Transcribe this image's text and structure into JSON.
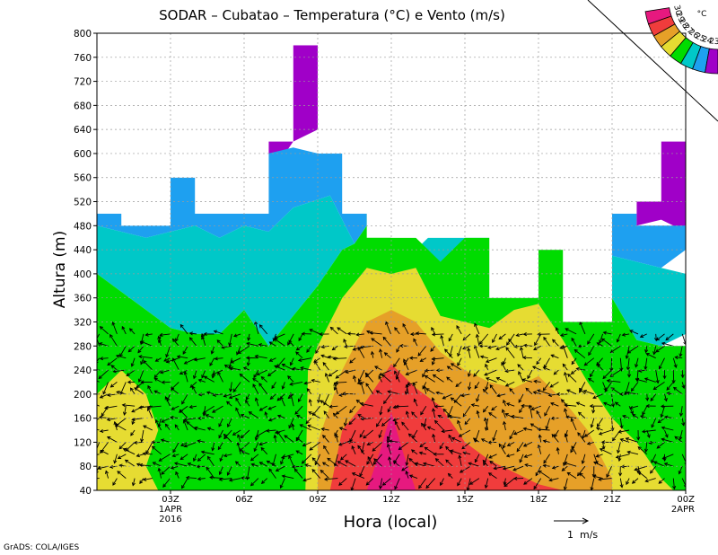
{
  "chart_data": {
    "type": "contour",
    "title": "SODAR – Cubatao – Temperatura (°C) e Vento (m/s)",
    "xlabel": "Hora (local)",
    "ylabel": "Altura (m)",
    "ylim": [
      40,
      800
    ],
    "xlim_hours": [
      0,
      24
    ],
    "y_ticks": [
      40,
      80,
      120,
      160,
      200,
      240,
      280,
      320,
      360,
      400,
      440,
      480,
      520,
      560,
      600,
      640,
      680,
      720,
      760,
      800
    ],
    "x_ticks": [
      {
        "hour": 3,
        "label": "03Z",
        "sub1": "1APR",
        "sub2": "2016"
      },
      {
        "hour": 6,
        "label": "06Z",
        "sub1": "",
        "sub2": ""
      },
      {
        "hour": 9,
        "label": "09Z",
        "sub1": "",
        "sub2": ""
      },
      {
        "hour": 12,
        "label": "12Z",
        "sub1": "",
        "sub2": ""
      },
      {
        "hour": 15,
        "label": "15Z",
        "sub1": "",
        "sub2": ""
      },
      {
        "hour": 18,
        "label": "18Z",
        "sub1": "",
        "sub2": ""
      },
      {
        "hour": 21,
        "label": "21Z",
        "sub1": "",
        "sub2": ""
      },
      {
        "hour": 24,
        "label": "00Z",
        "sub1": "2APR",
        "sub2": ""
      }
    ],
    "legend": {
      "unit": "°C",
      "placement": "top-right",
      "levels": [
        {
          "label": "30",
          "color": "#e6197f"
        },
        {
          "label": "29",
          "color": "#f03c3c"
        },
        {
          "label": "28",
          "color": "#e6a028"
        },
        {
          "label": "27",
          "color": "#e6dc32"
        },
        {
          "label": "26",
          "color": "#00dc00"
        },
        {
          "label": "25",
          "color": "#00c8c8"
        },
        {
          "label": "24",
          "color": "#1ea0f0"
        },
        {
          "label": "23",
          "color": "#a000c8"
        }
      ]
    },
    "data_top_m": [
      {
        "hour_start": 0,
        "hour_end": 1,
        "top": 500
      },
      {
        "hour_start": 1,
        "hour_end": 3,
        "top": 480
      },
      {
        "hour_start": 3,
        "hour_end": 4,
        "top": 560
      },
      {
        "hour_start": 4,
        "hour_end": 6,
        "top": 500
      },
      {
        "hour_start": 6,
        "hour_end": 7,
        "top": 500
      },
      {
        "hour_start": 7,
        "hour_end": 8,
        "top": 620
      },
      {
        "hour_start": 8,
        "hour_end": 9,
        "top": 780
      },
      {
        "hour_start": 9,
        "hour_end": 10,
        "top": 600
      },
      {
        "hour_start": 10,
        "hour_end": 11,
        "top": 500
      },
      {
        "hour_start": 11,
        "hour_end": 13,
        "top": 460
      },
      {
        "hour_start": 13,
        "hour_end": 16,
        "top": 460
      },
      {
        "hour_start": 16,
        "hour_end": 18,
        "top": 360
      },
      {
        "hour_start": 18,
        "hour_end": 19,
        "top": 440
      },
      {
        "hour_start": 19,
        "hour_end": 21,
        "top": 320
      },
      {
        "hour_start": 21,
        "hour_end": 22,
        "top": 500
      },
      {
        "hour_start": 22,
        "hour_end": 23,
        "top": 520
      },
      {
        "hour_start": 23,
        "hour_end": 24,
        "top": 620
      }
    ],
    "temperature_layers": [
      {
        "level": "23",
        "points": [
          [
            7,
            600
          ],
          [
            7,
            620
          ],
          [
            8,
            620
          ],
          [
            8,
            780
          ],
          [
            9,
            780
          ],
          [
            9,
            640
          ],
          [
            8,
            620
          ],
          [
            7.5,
            590
          ]
        ]
      },
      {
        "level": "23",
        "points": [
          [
            22,
            480
          ],
          [
            23,
            490
          ],
          [
            24,
            470
          ],
          [
            24,
            620
          ],
          [
            23,
            620
          ],
          [
            23,
            520
          ],
          [
            22,
            520
          ]
        ]
      },
      {
        "level": "24",
        "points": [
          [
            0,
            480
          ],
          [
            0,
            500
          ],
          [
            1,
            500
          ],
          [
            1,
            480
          ],
          [
            3,
            480
          ],
          [
            3,
            560
          ],
          [
            4,
            560
          ],
          [
            4,
            500
          ],
          [
            7,
            500
          ],
          [
            7,
            600
          ],
          [
            8,
            610
          ],
          [
            9,
            600
          ],
          [
            10,
            600
          ],
          [
            10,
            500
          ],
          [
            11,
            500
          ],
          [
            11,
            480
          ],
          [
            10.5,
            450
          ],
          [
            9.5,
            530
          ],
          [
            8,
            510
          ],
          [
            7,
            470
          ],
          [
            6,
            480
          ],
          [
            5,
            460
          ],
          [
            4,
            480
          ],
          [
            3,
            470
          ],
          [
            2,
            460
          ],
          [
            1,
            470
          ]
        ]
      },
      {
        "level": "24",
        "points": [
          [
            21,
            500
          ],
          [
            22,
            500
          ],
          [
            22,
            480
          ],
          [
            24,
            480
          ],
          [
            24,
            440
          ],
          [
            23,
            410
          ],
          [
            22,
            420
          ],
          [
            21,
            430
          ]
        ]
      },
      {
        "level": "25",
        "points": [
          [
            0,
            400
          ],
          [
            0,
            480
          ],
          [
            1,
            470
          ],
          [
            2,
            460
          ],
          [
            3,
            470
          ],
          [
            4,
            480
          ],
          [
            5,
            460
          ],
          [
            6,
            480
          ],
          [
            7,
            470
          ],
          [
            8,
            510
          ],
          [
            9.5,
            530
          ],
          [
            10.5,
            450
          ],
          [
            10,
            440
          ],
          [
            9,
            380
          ],
          [
            8,
            330
          ],
          [
            7,
            280
          ],
          [
            6,
            340
          ],
          [
            5,
            300
          ],
          [
            4,
            300
          ],
          [
            3,
            310
          ],
          [
            2,
            340
          ],
          [
            1,
            370
          ]
        ]
      },
      {
        "level": "25",
        "points": [
          [
            13,
            440
          ],
          [
            13.5,
            460
          ],
          [
            15,
            460
          ],
          [
            16,
            460
          ],
          [
            15.5,
            440
          ],
          [
            15,
            420
          ],
          [
            14,
            420
          ]
        ]
      },
      {
        "level": "25",
        "points": [
          [
            21,
            360
          ],
          [
            21,
            430
          ],
          [
            22,
            420
          ],
          [
            23,
            410
          ],
          [
            24,
            400
          ],
          [
            24,
            300
          ],
          [
            23,
            280
          ],
          [
            22,
            290
          ]
        ]
      },
      {
        "level": "26",
        "points": [
          [
            0,
            40
          ],
          [
            0,
            400
          ],
          [
            1,
            370
          ],
          [
            2,
            340
          ],
          [
            3,
            310
          ],
          [
            4,
            300
          ],
          [
            5,
            300
          ],
          [
            6,
            340
          ],
          [
            7,
            280
          ],
          [
            8,
            330
          ],
          [
            9,
            380
          ],
          [
            10,
            440
          ],
          [
            10.5,
            450
          ],
          [
            11,
            480
          ],
          [
            11,
            500
          ],
          [
            12,
            500
          ],
          [
            12,
            460
          ],
          [
            13,
            460
          ],
          [
            14,
            420
          ],
          [
            15,
            460
          ],
          [
            16,
            460
          ],
          [
            16,
            360
          ],
          [
            18,
            360
          ],
          [
            18,
            440
          ],
          [
            19,
            440
          ],
          [
            19,
            320
          ],
          [
            21,
            320
          ],
          [
            21,
            360
          ],
          [
            22,
            290
          ],
          [
            23,
            280
          ],
          [
            24,
            280
          ],
          [
            24,
            40
          ]
        ]
      },
      {
        "level": "27",
        "points": [
          [
            0,
            40
          ],
          [
            0,
            200
          ],
          [
            1,
            240
          ],
          [
            2,
            200
          ],
          [
            2.5,
            140
          ],
          [
            2,
            80
          ],
          [
            2.5,
            40
          ]
        ]
      },
      {
        "level": "27",
        "points": [
          [
            8.5,
            40
          ],
          [
            8.6,
            240
          ],
          [
            9,
            280
          ],
          [
            10,
            360
          ],
          [
            11,
            410
          ],
          [
            12,
            400
          ],
          [
            13,
            410
          ],
          [
            14,
            330
          ],
          [
            15,
            320
          ],
          [
            16,
            310
          ],
          [
            17,
            340
          ],
          [
            18,
            350
          ],
          [
            19,
            290
          ],
          [
            20,
            220
          ],
          [
            21,
            160
          ],
          [
            22,
            120
          ],
          [
            23,
            60
          ],
          [
            23.5,
            40
          ]
        ]
      },
      {
        "level": "28",
        "points": [
          [
            9,
            40
          ],
          [
            9,
            120
          ],
          [
            10,
            240
          ],
          [
            11,
            320
          ],
          [
            12,
            340
          ],
          [
            13,
            320
          ],
          [
            14,
            270
          ],
          [
            15,
            240
          ],
          [
            16,
            220
          ],
          [
            17,
            210
          ],
          [
            18,
            230
          ],
          [
            19,
            190
          ],
          [
            20,
            140
          ],
          [
            20.5,
            100
          ],
          [
            21,
            60
          ],
          [
            21,
            40
          ]
        ]
      },
      {
        "level": "29",
        "points": [
          [
            9.5,
            40
          ],
          [
            10,
            140
          ],
          [
            11,
            190
          ],
          [
            12,
            250
          ],
          [
            13,
            210
          ],
          [
            14,
            180
          ],
          [
            15,
            120
          ],
          [
            16,
            90
          ],
          [
            17,
            70
          ],
          [
            18,
            50
          ],
          [
            19,
            40
          ]
        ]
      },
      {
        "level": "30",
        "points": [
          [
            11,
            40
          ],
          [
            11.5,
            100
          ],
          [
            12,
            170
          ],
          [
            12.5,
            100
          ],
          [
            13,
            40
          ]
        ]
      }
    ],
    "wind_scale_label": "1  m/s",
    "credit": "GrADS: COLA/IGES"
  }
}
